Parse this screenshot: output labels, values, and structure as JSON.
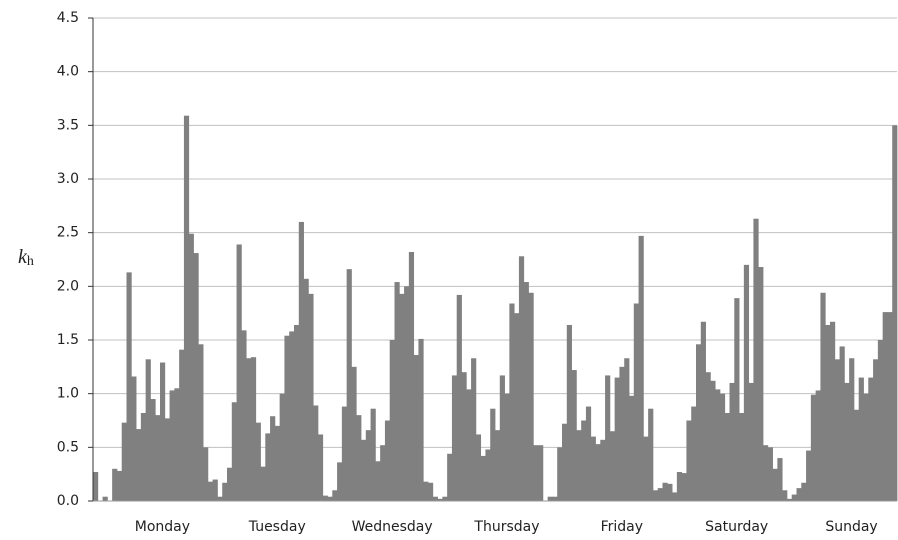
{
  "chart_data": {
    "type": "bar",
    "y_label": "k",
    "y_label_subscript": "h",
    "categories": [
      null,
      null,
      null,
      null,
      null,
      null,
      null,
      null,
      null,
      null,
      null,
      null,
      null,
      null,
      "Monday",
      null,
      null,
      null,
      null,
      null,
      null,
      null,
      null,
      null,
      null,
      null,
      null,
      null,
      null,
      null,
      null,
      null,
      null,
      null,
      null,
      null,
      null,
      null,
      "Tuesday",
      null,
      null,
      null,
      null,
      null,
      null,
      null,
      null,
      null,
      null,
      null,
      null,
      null,
      null,
      null,
      null,
      null,
      null,
      null,
      null,
      null,
      null,
      null,
      "Wednesday",
      null,
      null,
      null,
      null,
      null,
      null,
      null,
      null,
      null,
      null,
      null,
      null,
      null,
      null,
      null,
      null,
      null,
      null,
      null,
      null,
      null,
      null,
      null,
      "Thursday",
      null,
      null,
      null,
      null,
      null,
      null,
      null,
      null,
      null,
      null,
      null,
      null,
      null,
      null,
      null,
      null,
      null,
      null,
      null,
      null,
      null,
      null,
      null,
      "Friday",
      null,
      null,
      null,
      null,
      null,
      null,
      null,
      null,
      null,
      null,
      null,
      null,
      null,
      null,
      null,
      null,
      null,
      null,
      null,
      null,
      null,
      null,
      null,
      "Saturday",
      null,
      null,
      null,
      null,
      null,
      null,
      null,
      null,
      null,
      null,
      null,
      null,
      null,
      null,
      null,
      null,
      null,
      null,
      null,
      null,
      null,
      null,
      null,
      "Sunday",
      null,
      null,
      null,
      null,
      null,
      null,
      null,
      null,
      null
    ],
    "values": [
      0.27,
      0.0,
      0.04,
      0.0,
      0.3,
      0.28,
      0.73,
      2.13,
      1.16,
      0.67,
      0.82,
      1.32,
      0.95,
      0.8,
      1.29,
      0.77,
      1.03,
      1.05,
      1.41,
      3.59,
      2.49,
      2.31,
      1.46,
      0.5,
      0.18,
      0.2,
      0.04,
      0.17,
      0.31,
      0.92,
      2.39,
      1.59,
      1.33,
      1.34,
      0.73,
      0.32,
      0.63,
      0.79,
      0.7,
      1.0,
      1.54,
      1.58,
      1.64,
      2.6,
      2.07,
      1.93,
      0.89,
      0.62,
      0.05,
      0.04,
      0.1,
      0.36,
      0.88,
      2.16,
      1.25,
      0.8,
      0.57,
      0.66,
      0.86,
      0.37,
      0.52,
      0.75,
      1.5,
      2.04,
      1.93,
      2.0,
      2.32,
      1.36,
      1.51,
      0.18,
      0.17,
      0.04,
      0.02,
      0.04,
      0.44,
      1.17,
      1.92,
      1.2,
      1.04,
      1.33,
      0.62,
      0.42,
      0.48,
      0.86,
      0.66,
      1.17,
      1.0,
      1.84,
      1.75,
      2.28,
      2.04,
      1.94,
      0.52,
      0.52,
      0.0,
      0.04,
      0.04,
      0.5,
      0.72,
      1.64,
      1.22,
      0.66,
      0.75,
      0.88,
      0.6,
      0.53,
      0.57,
      1.17,
      0.65,
      1.15,
      1.25,
      1.33,
      0.98,
      1.84,
      2.47,
      0.6,
      0.86,
      0.1,
      0.12,
      0.17,
      0.16,
      0.08,
      0.27,
      0.26,
      0.75,
      0.88,
      1.46,
      1.67,
      1.2,
      1.12,
      1.04,
      1.0,
      0.82,
      1.1,
      1.89,
      0.82,
      2.2,
      1.1,
      2.63,
      2.18,
      0.52,
      0.5,
      0.3,
      0.4,
      0.1,
      0.02,
      0.06,
      0.12,
      0.17,
      0.47,
      0.99,
      1.03,
      1.94,
      1.64,
      1.67,
      1.32,
      1.44,
      1.1,
      1.33,
      0.85,
      1.15,
      1.0,
      1.15,
      1.32,
      1.5,
      1.76,
      1.76,
      3.5
    ],
    "color": "#808080",
    "ylim": [
      0,
      4.5
    ],
    "yticks": [
      {
        "value": 0,
        "label": "0.0"
      },
      0.5,
      {
        "value": 1,
        "label": "1.0"
      },
      1.5,
      {
        "value": 2,
        "label": "2.0"
      },
      2.5,
      {
        "value": 3,
        "label": "3.0"
      },
      3.5,
      {
        "value": 4,
        "label": "4.0"
      },
      4.5
    ],
    "grid": true
  }
}
